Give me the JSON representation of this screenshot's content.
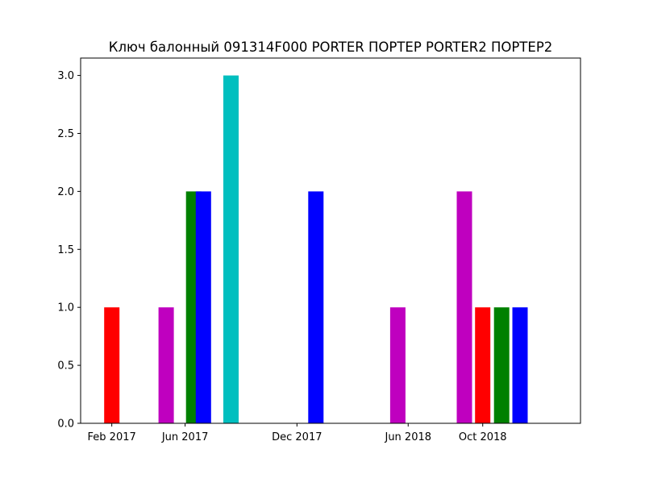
{
  "chart_data": {
    "type": "bar",
    "title": "Ключ балонный 091314F000 PORTER ПОРТЕР PORTER2 ПОРТЕР2",
    "xlabel": "",
    "ylabel": "",
    "ylim": [
      0,
      3.15
    ],
    "grid": false,
    "legend": "none",
    "x_ticks": [
      {
        "date": "2017-02-01",
        "label": "Feb 2017"
      },
      {
        "date": "2017-06-01",
        "label": "Jun 2017"
      },
      {
        "date": "2017-12-01",
        "label": "Dec 2017"
      },
      {
        "date": "2018-06-01",
        "label": "Jun 2018"
      },
      {
        "date": "2018-10-01",
        "label": "Oct 2018"
      }
    ],
    "y_ticks": [
      {
        "value": 0.0,
        "label": "0.0"
      },
      {
        "value": 0.5,
        "label": "0.5"
      },
      {
        "value": 1.0,
        "label": "1.0"
      },
      {
        "value": 1.5,
        "label": "1.5"
      },
      {
        "value": 2.0,
        "label": "2.0"
      },
      {
        "value": 2.5,
        "label": "2.5"
      },
      {
        "value": 3.0,
        "label": "3.0"
      }
    ],
    "bars": [
      {
        "date": "2017-02-01",
        "value": 1,
        "color": "#ff0000"
      },
      {
        "date": "2017-05-01",
        "value": 1,
        "color": "#bf00bf"
      },
      {
        "date": "2017-06-15",
        "value": 2,
        "color": "#008000"
      },
      {
        "date": "2017-07-01",
        "value": 2,
        "color": "#0000ff"
      },
      {
        "date": "2017-08-15",
        "value": 3,
        "color": "#00bfbf"
      },
      {
        "date": "2018-01-01",
        "value": 2,
        "color": "#0000ff"
      },
      {
        "date": "2018-05-15",
        "value": 1,
        "color": "#bf00bf"
      },
      {
        "date": "2018-09-01",
        "value": 2,
        "color": "#bf00bf"
      },
      {
        "date": "2018-10-01",
        "value": 1,
        "color": "#ff0000"
      },
      {
        "date": "2018-11-01",
        "value": 1,
        "color": "#008000"
      },
      {
        "date": "2018-12-01",
        "value": 1,
        "color": "#0000ff"
      }
    ]
  }
}
